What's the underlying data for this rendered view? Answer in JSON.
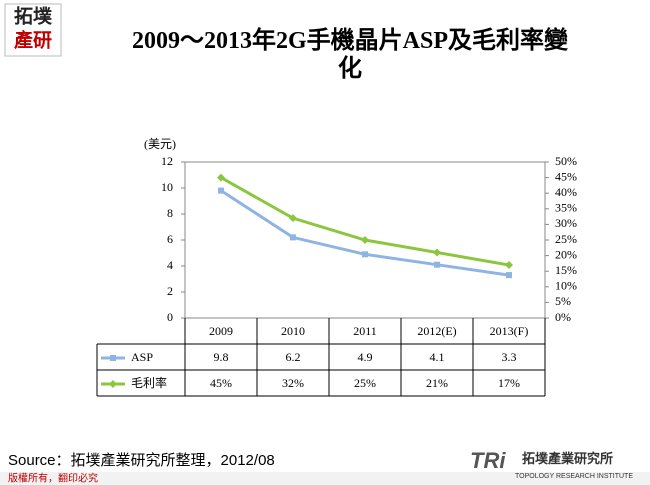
{
  "logo": {
    "line1": "拓墣",
    "line2": "產研"
  },
  "chart_data": {
    "type": "line",
    "title": "2009～2013年2G手機晶片ASP及毛利率變化",
    "y_label": "(美元)",
    "categories": [
      "2009",
      "2010",
      "2011",
      "2012(E)",
      "2013(F)"
    ],
    "series": [
      {
        "name": "ASP",
        "color": "#8db4e2",
        "marker": "square",
        "values": [
          9.8,
          6.2,
          4.9,
          4.1,
          3.3
        ]
      },
      {
        "name": "毛利率",
        "color": "#8cc63f",
        "marker": "diamond",
        "axis": "y2",
        "values": [
          45,
          32,
          25,
          21,
          17
        ],
        "value_labels": [
          "45%",
          "32%",
          "25%",
          "21%",
          "17%"
        ]
      }
    ],
    "ylim": [
      0,
      12
    ],
    "yticks": [
      0,
      2,
      4,
      6,
      8,
      10,
      12
    ],
    "y2lim": [
      0,
      50
    ],
    "y2ticks": [
      {
        "value": 0,
        "label": "0%"
      },
      {
        "value": 5,
        "label": "5%"
      },
      {
        "value": 10,
        "label": "10%"
      },
      {
        "value": 15,
        "label": "15%"
      },
      {
        "value": 20,
        "label": "20%"
      },
      {
        "value": 25,
        "label": "25%"
      },
      {
        "value": 30,
        "label": "30%"
      },
      {
        "value": 35,
        "label": "35%"
      },
      {
        "value": 40,
        "label": "40%"
      },
      {
        "value": 45,
        "label": "45%"
      },
      {
        "value": 50,
        "label": "50%"
      }
    ],
    "data_table": true
  },
  "source": "Source：拓墣產業研究所整理，2012/08",
  "footer": {
    "copyright": "版權所有，翻印必究",
    "brand": "TRi",
    "brand_cn": "拓墣產業研究所",
    "brand_en": "TOPOLOGY RESEARCH INSTITUTE"
  }
}
